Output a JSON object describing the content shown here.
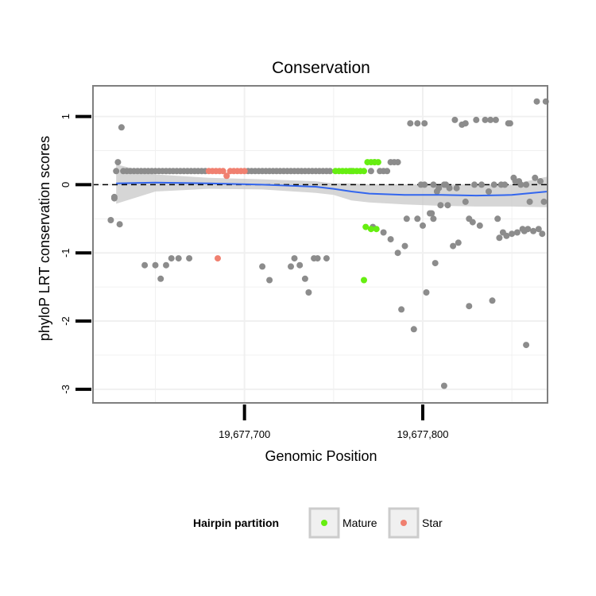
{
  "chart_data": {
    "type": "scatter",
    "title": "Conservation",
    "xlabel": "Genomic Position",
    "ylabel": "phyloP LRT conservation scores",
    "xlim": [
      19677615,
      19677870
    ],
    "ylim": [
      -3.2,
      1.45
    ],
    "x_ticks": [
      {
        "value": 19677700,
        "label": "19,677,700"
      },
      {
        "value": 19677800,
        "label": "19,677,800"
      }
    ],
    "y_ticks": [
      {
        "value": 1,
        "label": "1"
      },
      {
        "value": 0,
        "label": "0"
      },
      {
        "value": -1,
        "label": "-1"
      },
      {
        "value": -2,
        "label": "-2"
      },
      {
        "value": -3,
        "label": "-3"
      }
    ],
    "reference_line": {
      "y": 0,
      "style": "dashed"
    },
    "legend": {
      "title": "Hairpin partition",
      "position": "bottom",
      "entries": [
        {
          "label": "Mature",
          "color": "#66ee11"
        },
        {
          "label": "Star",
          "color": "#f08070"
        }
      ]
    },
    "colors": {
      "other": "#8c8c8c",
      "mature": "#66ee11",
      "star": "#f08070",
      "smooth_line": "#3366ee",
      "ribbon": "#c8c8c8",
      "grid": "#f0f0f0",
      "panel_border": "#7f7f7f"
    },
    "series": [
      {
        "name": "other",
        "points": [
          [
            19677625,
            -0.52
          ],
          [
            19677627,
            -0.18
          ],
          [
            19677627,
            -0.2
          ],
          [
            19677628,
            0.2
          ],
          [
            19677629,
            0.33
          ],
          [
            19677630,
            -0.58
          ],
          [
            19677631,
            0.84
          ],
          [
            19677632,
            0.2
          ],
          [
            19677634,
            0.2
          ],
          [
            19677636,
            0.2
          ],
          [
            19677638,
            0.2
          ],
          [
            19677640,
            0.2
          ],
          [
            19677642,
            0.2
          ],
          [
            19677644,
            0.2
          ],
          [
            19677646,
            0.2
          ],
          [
            19677648,
            0.2
          ],
          [
            19677650,
            0.2
          ],
          [
            19677652,
            0.2
          ],
          [
            19677654,
            0.2
          ],
          [
            19677656,
            0.2
          ],
          [
            19677658,
            0.2
          ],
          [
            19677660,
            0.2
          ],
          [
            19677662,
            0.2
          ],
          [
            19677664,
            0.2
          ],
          [
            19677666,
            0.2
          ],
          [
            19677668,
            0.2
          ],
          [
            19677670,
            0.2
          ],
          [
            19677672,
            0.2
          ],
          [
            19677674,
            0.2
          ],
          [
            19677676,
            0.2
          ],
          [
            19677678,
            0.2
          ],
          [
            19677644,
            -1.18
          ],
          [
            19677650,
            -1.18
          ],
          [
            19677653,
            -1.38
          ],
          [
            19677656,
            -1.18
          ],
          [
            19677659,
            -1.08
          ],
          [
            19677663,
            -1.08
          ],
          [
            19677669,
            -1.08
          ],
          [
            19677702,
            0.2
          ],
          [
            19677704,
            0.2
          ],
          [
            19677706,
            0.2
          ],
          [
            19677708,
            0.2
          ],
          [
            19677710,
            0.2
          ],
          [
            19677712,
            0.2
          ],
          [
            19677714,
            0.2
          ],
          [
            19677716,
            0.2
          ],
          [
            19677718,
            0.2
          ],
          [
            19677720,
            0.2
          ],
          [
            19677722,
            0.2
          ],
          [
            19677724,
            0.2
          ],
          [
            19677726,
            0.2
          ],
          [
            19677728,
            0.2
          ],
          [
            19677730,
            0.2
          ],
          [
            19677732,
            0.2
          ],
          [
            19677734,
            0.2
          ],
          [
            19677736,
            0.2
          ],
          [
            19677738,
            0.2
          ],
          [
            19677740,
            0.2
          ],
          [
            19677742,
            0.2
          ],
          [
            19677744,
            0.2
          ],
          [
            19677746,
            0.2
          ],
          [
            19677748,
            0.2
          ],
          [
            19677710,
            -1.2
          ],
          [
            19677714,
            -1.4
          ],
          [
            19677726,
            -1.2
          ],
          [
            19677728,
            -1.08
          ],
          [
            19677731,
            -1.18
          ],
          [
            19677734,
            -1.38
          ],
          [
            19677736,
            -1.58
          ],
          [
            19677739,
            -1.08
          ],
          [
            19677741,
            -1.08
          ],
          [
            19677746,
            -1.08
          ],
          [
            19677760,
            0.2
          ],
          [
            19677771,
            0.2
          ],
          [
            19677773,
            0.33
          ],
          [
            19677776,
            0.2
          ],
          [
            19677778,
            0.2
          ],
          [
            19677780,
            0.2
          ],
          [
            19677782,
            0.33
          ],
          [
            19677784,
            0.33
          ],
          [
            19677786,
            0.33
          ],
          [
            19677772,
            -0.62
          ],
          [
            19677778,
            -0.7
          ],
          [
            19677782,
            -0.8
          ],
          [
            19677786,
            -1.0
          ],
          [
            19677788,
            -1.83
          ],
          [
            19677790,
            -0.9
          ],
          [
            19677791,
            -0.5
          ],
          [
            19677793,
            0.9
          ],
          [
            19677795,
            -2.12
          ],
          [
            19677797,
            -0.5
          ],
          [
            19677797,
            0.9
          ],
          [
            19677799,
            0.0
          ],
          [
            19677800,
            -0.6
          ],
          [
            19677801,
            0.0
          ],
          [
            19677801,
            0.9
          ],
          [
            19677802,
            -1.58
          ],
          [
            19677804,
            -0.42
          ],
          [
            19677805,
            -0.42
          ],
          [
            19677806,
            -0.5
          ],
          [
            19677806,
            0.0
          ],
          [
            19677807,
            -1.15
          ],
          [
            19677808,
            -0.1
          ],
          [
            19677809,
            -0.05
          ],
          [
            19677810,
            -0.3
          ],
          [
            19677812,
            -2.95
          ],
          [
            19677812,
            0.0
          ],
          [
            19677813,
            0.0
          ],
          [
            19677814,
            -0.3
          ],
          [
            19677815,
            -0.05
          ],
          [
            19677817,
            -0.9
          ],
          [
            19677818,
            0.95
          ],
          [
            19677819,
            -0.05
          ],
          [
            19677820,
            -0.85
          ],
          [
            19677822,
            0.88
          ],
          [
            19677824,
            0.9
          ],
          [
            19677824,
            -0.25
          ],
          [
            19677826,
            -1.78
          ],
          [
            19677826,
            -0.5
          ],
          [
            19677828,
            -0.55
          ],
          [
            19677829,
            0.0
          ],
          [
            19677830,
            0.95
          ],
          [
            19677832,
            -0.6
          ],
          [
            19677833,
            0.0
          ],
          [
            19677835,
            0.95
          ],
          [
            19677837,
            -0.1
          ],
          [
            19677838,
            0.95
          ],
          [
            19677839,
            -1.7
          ],
          [
            19677840,
            0.0
          ],
          [
            19677841,
            0.95
          ],
          [
            19677842,
            -0.5
          ],
          [
            19677843,
            -0.78
          ],
          [
            19677844,
            0.0
          ],
          [
            19677845,
            -0.7
          ],
          [
            19677846,
            0.0
          ],
          [
            19677847,
            -0.75
          ],
          [
            19677848,
            0.9
          ],
          [
            19677849,
            0.9
          ],
          [
            19677850,
            -0.72
          ],
          [
            19677851,
            0.1
          ],
          [
            19677852,
            0.05
          ],
          [
            19677853,
            -0.7
          ],
          [
            19677854,
            0.05
          ],
          [
            19677855,
            0.0
          ],
          [
            19677856,
            -0.65
          ],
          [
            19677857,
            -0.68
          ],
          [
            19677858,
            -2.35
          ],
          [
            19677858,
            0.0
          ],
          [
            19677859,
            -0.65
          ],
          [
            19677860,
            -0.25
          ],
          [
            19677862,
            -0.68
          ],
          [
            19677863,
            0.1
          ],
          [
            19677864,
            1.22
          ],
          [
            19677865,
            -0.65
          ],
          [
            19677866,
            0.05
          ],
          [
            19677867,
            -0.72
          ],
          [
            19677868,
            -0.25
          ],
          [
            19677869,
            1.22
          ]
        ]
      },
      {
        "name": "Mature",
        "points": [
          [
            19677751,
            0.2
          ],
          [
            19677753,
            0.2
          ],
          [
            19677755,
            0.2
          ],
          [
            19677757,
            0.2
          ],
          [
            19677759,
            0.2
          ],
          [
            19677761,
            0.2
          ],
          [
            19677763,
            0.2
          ],
          [
            19677765,
            0.2
          ],
          [
            19677767,
            0.2
          ],
          [
            19677769,
            0.33
          ],
          [
            19677771,
            0.33
          ],
          [
            19677773,
            0.33
          ],
          [
            19677775,
            0.33
          ],
          [
            19677768,
            -0.62
          ],
          [
            19677771,
            -0.65
          ],
          [
            19677774,
            -0.65
          ],
          [
            19677767,
            -1.4
          ]
        ]
      },
      {
        "name": "Star",
        "points": [
          [
            19677680,
            0.2
          ],
          [
            19677682,
            0.2
          ],
          [
            19677684,
            0.2
          ],
          [
            19677686,
            0.2
          ],
          [
            19677688,
            0.2
          ],
          [
            19677690,
            0.13
          ],
          [
            19677692,
            0.2
          ],
          [
            19677694,
            0.2
          ],
          [
            19677696,
            0.2
          ],
          [
            19677698,
            0.2
          ],
          [
            19677700,
            0.2
          ],
          [
            19677685,
            -1.08
          ]
        ]
      }
    ],
    "smooth": {
      "x": [
        19677628,
        19677650,
        19677680,
        19677710,
        19677740,
        19677750,
        19677760,
        19677770,
        19677790,
        19677810,
        19677830,
        19677850,
        19677870
      ],
      "y": [
        0.02,
        0.03,
        0.02,
        0.0,
        -0.03,
        -0.06,
        -0.1,
        -0.13,
        -0.15,
        -0.15,
        -0.16,
        -0.15,
        -0.1
      ],
      "upper": [
        0.3,
        0.15,
        0.1,
        0.08,
        0.05,
        0.02,
        0.02,
        0.0,
        0.0,
        0.0,
        0.0,
        0.0,
        0.12
      ],
      "lower": [
        -0.28,
        -0.1,
        -0.06,
        -0.07,
        -0.12,
        -0.15,
        -0.23,
        -0.26,
        -0.29,
        -0.31,
        -0.32,
        -0.32,
        -0.33
      ]
    }
  }
}
